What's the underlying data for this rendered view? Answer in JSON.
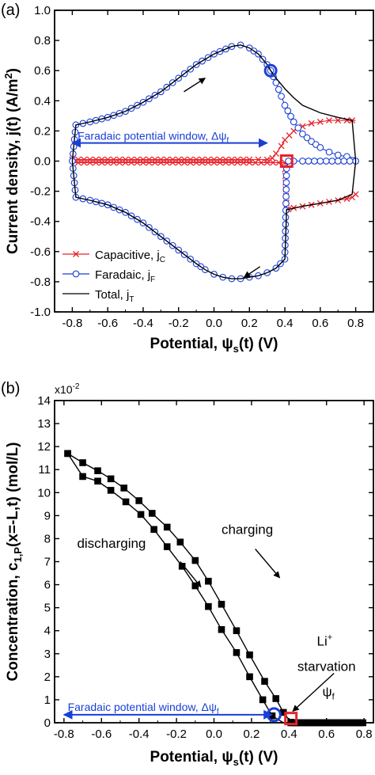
{
  "chart_data": [
    {
      "type": "line",
      "panel_label": "(a)",
      "xlabel_main": "Potential, ψ",
      "xlabel_sub": "s",
      "xlabel_tail": "(t) (V)",
      "ylabel_main": "Current density, j(t) (A/m",
      "ylabel_sup": "2",
      "ylabel_tail": ")",
      "xlim": [
        -0.9,
        0.9
      ],
      "ylim": [
        -1.0,
        1.0
      ],
      "x_ticks": [
        "-0.8",
        "-0.6",
        "-0.4",
        "-0.2",
        "0.0",
        "0.2",
        "0.4",
        "0.6",
        "0.8"
      ],
      "y_ticks": [
        "-1.0",
        "-0.8",
        "-0.6",
        "-0.4",
        "-0.2",
        "0.0",
        "0.2",
        "0.4",
        "0.6",
        "0.8",
        "1.0"
      ],
      "legend_position": "bottom-left",
      "series": [
        {
          "name": "Capacitive, j",
          "subscript": "C",
          "color": "#e8222a",
          "marker": "x",
          "branches": [
            {
              "x": [
                -0.8,
                -0.7,
                -0.6,
                -0.5,
                -0.4,
                -0.3,
                -0.2,
                -0.1,
                0.0,
                0.1,
                0.2,
                0.25,
                0.3,
                0.33,
                0.35,
                0.38,
                0.4,
                0.45,
                0.5,
                0.55,
                0.6,
                0.65,
                0.7,
                0.75,
                0.78,
                0.8
              ],
              "y": [
                0.01,
                0.01,
                0.01,
                0.01,
                0.01,
                0.01,
                0.01,
                0.01,
                0.01,
                0.01,
                0.01,
                0.01,
                0.01,
                0.02,
                0.05,
                0.1,
                0.14,
                0.2,
                0.23,
                0.25,
                0.26,
                0.27,
                0.27,
                0.27,
                0.27,
                0.27
              ]
            },
            {
              "x": [
                0.8,
                0.78,
                0.75,
                0.7,
                0.65,
                0.6,
                0.55,
                0.5,
                0.45,
                0.42,
                0.41,
                0.4,
                0.3,
                0.2,
                0.1,
                0.0,
                -0.1,
                -0.2,
                -0.3,
                -0.4,
                -0.5,
                -0.6,
                -0.7,
                -0.8
              ],
              "y": [
                -0.22,
                -0.24,
                -0.25,
                -0.26,
                -0.27,
                -0.28,
                -0.29,
                -0.3,
                -0.31,
                -0.32,
                -0.32,
                -0.01,
                -0.01,
                -0.01,
                -0.01,
                -0.01,
                -0.01,
                -0.01,
                -0.01,
                -0.01,
                -0.01,
                -0.01,
                -0.01,
                -0.01
              ]
            }
          ]
        },
        {
          "name": "Faradaic, j",
          "subscript": "F",
          "color": "#1a3fd6",
          "marker": "o",
          "branches": [
            {
              "x": [
                -0.8,
                -0.78,
                -0.7,
                -0.6,
                -0.5,
                -0.4,
                -0.3,
                -0.2,
                -0.1,
                0.0,
                0.1,
                0.15,
                0.2,
                0.25,
                0.3,
                0.32,
                0.35,
                0.38,
                0.4,
                0.45,
                0.5,
                0.55,
                0.6,
                0.65,
                0.7,
                0.75,
                0.8
              ],
              "y": [
                0.0,
                0.24,
                0.26,
                0.29,
                0.33,
                0.39,
                0.46,
                0.55,
                0.64,
                0.71,
                0.76,
                0.77,
                0.75,
                0.71,
                0.64,
                0.6,
                0.52,
                0.43,
                0.37,
                0.26,
                0.18,
                0.13,
                0.09,
                0.06,
                0.04,
                0.03,
                0.02
              ]
            },
            {
              "x": [
                0.8,
                0.7,
                0.6,
                0.5,
                0.45,
                0.42,
                0.41,
                0.4,
                0.35,
                0.3,
                0.25,
                0.2,
                0.15,
                0.1,
                0.05,
                0.0,
                -0.05,
                -0.1,
                -0.2,
                -0.3,
                -0.4,
                -0.5,
                -0.6,
                -0.7,
                -0.78,
                -0.8
              ],
              "y": [
                0.0,
                0.0,
                0.0,
                0.0,
                0.0,
                0.0,
                -0.05,
                -0.65,
                -0.71,
                -0.74,
                -0.76,
                -0.77,
                -0.78,
                -0.78,
                -0.77,
                -0.75,
                -0.72,
                -0.68,
                -0.59,
                -0.5,
                -0.41,
                -0.34,
                -0.29,
                -0.26,
                -0.24,
                0.0
              ]
            }
          ]
        },
        {
          "name": "Total, j",
          "subscript": "T",
          "color": "#000000",
          "marker": "none",
          "branches": [
            {
              "x": [
                -0.8,
                -0.78,
                -0.7,
                -0.6,
                -0.5,
                -0.4,
                -0.3,
                -0.2,
                -0.1,
                0.0,
                0.1,
                0.15,
                0.2,
                0.25,
                0.3,
                0.32,
                0.35,
                0.4,
                0.45,
                0.5,
                0.6,
                0.7,
                0.78,
                0.8
              ],
              "y": [
                0.0,
                0.24,
                0.26,
                0.29,
                0.33,
                0.39,
                0.46,
                0.55,
                0.64,
                0.71,
                0.76,
                0.77,
                0.75,
                0.71,
                0.64,
                0.6,
                0.55,
                0.48,
                0.42,
                0.37,
                0.32,
                0.29,
                0.27,
                0.0
              ]
            },
            {
              "x": [
                0.8,
                0.78,
                0.7,
                0.6,
                0.5,
                0.42,
                0.41,
                0.4,
                0.35,
                0.3,
                0.25,
                0.2,
                0.15,
                0.1,
                0.05,
                0.0,
                -0.05,
                -0.1,
                -0.2,
                -0.3,
                -0.4,
                -0.5,
                -0.6,
                -0.7,
                -0.78,
                -0.8
              ],
              "y": [
                0.0,
                -0.22,
                -0.26,
                -0.28,
                -0.3,
                -0.32,
                -0.32,
                -0.65,
                -0.71,
                -0.74,
                -0.76,
                -0.77,
                -0.78,
                -0.78,
                -0.77,
                -0.75,
                -0.72,
                -0.68,
                -0.59,
                -0.5,
                -0.41,
                -0.34,
                -0.29,
                -0.26,
                -0.24,
                0.0
              ]
            }
          ]
        }
      ],
      "annotations": {
        "window_text": "Faradaic potential window, Δψ",
        "window_sub": "f",
        "window_x": [
          -0.8,
          0.3
        ],
        "window_y": 0.12,
        "circle_marker": {
          "x": 0.32,
          "y": 0.6,
          "color": "#1a3fd6"
        },
        "square_marker": {
          "x": 0.41,
          "y": 0.0,
          "color": "#e8222a"
        },
        "arrows": [
          {
            "from": [
              -0.17,
              0.46
            ],
            "to": [
              -0.05,
              0.55
            ]
          },
          {
            "from": [
              0.26,
              -0.7
            ],
            "to": [
              0.17,
              -0.77
            ]
          }
        ]
      }
    },
    {
      "type": "line",
      "panel_label": "(b)",
      "xlabel_main": "Potential, ψ",
      "xlabel_sub": "s",
      "xlabel_tail": "(t) (V)",
      "ylabel_main": "Concentration, c",
      "ylabel_sub": "1,P",
      "ylabel_tail": "(x=-L,t) (mol/L)",
      "y_multiplier": "x10",
      "y_multiplier_exp": "-2",
      "xlim": [
        -0.85,
        0.85
      ],
      "ylim": [
        0,
        14
      ],
      "x_ticks": [
        "-0.8",
        "-0.6",
        "-0.4",
        "-0.2",
        "0.0",
        "0.2",
        "0.4",
        "0.6",
        "0.8"
      ],
      "y_ticks": [
        "0",
        "1",
        "2",
        "3",
        "4",
        "5",
        "6",
        "7",
        "8",
        "9",
        "10",
        "11",
        "12",
        "13",
        "14"
      ],
      "series": [
        {
          "name": "charging",
          "color": "#000000",
          "marker": "square",
          "x": [
            -0.78,
            -0.7,
            -0.62,
            -0.55,
            -0.48,
            -0.4,
            -0.33,
            -0.25,
            -0.18,
            -0.1,
            -0.03,
            0.04,
            0.12,
            0.19,
            0.27,
            0.33,
            0.37,
            0.41,
            0.45,
            0.55,
            0.65,
            0.75,
            0.8
          ],
          "y": [
            11.7,
            11.3,
            10.95,
            10.6,
            10.2,
            9.65,
            9.1,
            8.5,
            7.85,
            7.05,
            6.15,
            5.15,
            4.0,
            2.95,
            1.8,
            1.05,
            0.45,
            0.02,
            0.0,
            0.0,
            0.0,
            0.0,
            0.0
          ]
        },
        {
          "name": "discharging",
          "color": "#000000",
          "marker": "square",
          "x": [
            0.8,
            0.7,
            0.6,
            0.5,
            0.41,
            0.37,
            0.31,
            0.26,
            0.19,
            0.12,
            0.04,
            -0.03,
            -0.1,
            -0.17,
            -0.25,
            -0.32,
            -0.39,
            -0.47,
            -0.55,
            -0.62,
            -0.7,
            -0.78
          ],
          "y": [
            0.0,
            0.0,
            0.0,
            0.0,
            0.0,
            0.0,
            0.3,
            1.0,
            2.0,
            3.05,
            4.05,
            5.05,
            5.95,
            6.8,
            7.65,
            8.4,
            9.05,
            9.6,
            10.1,
            10.5,
            10.7,
            11.7
          ]
        }
      ],
      "annotations": {
        "charging_label": "charging",
        "discharging_label": "discharging",
        "li_label": "Li",
        "li_sup": "+",
        "starvation_label": "starvation",
        "psi_label": "ψ",
        "psi_sub": "f",
        "window_text": "Faradaic potential window, Δψ",
        "window_sub": "f",
        "window_x": [
          -0.8,
          0.31
        ],
        "window_y": 0.35,
        "circle_marker": {
          "x": 0.32,
          "y": 0.35,
          "color": "#1a3fd6"
        },
        "square_marker": {
          "x": 0.41,
          "y": 0.15,
          "color": "#e8222a"
        },
        "arrows": [
          {
            "from": [
              0.22,
              7.55
            ],
            "to": [
              0.35,
              6.3
            ]
          },
          {
            "from": [
              -0.18,
              7.0
            ],
            "to": [
              -0.07,
              5.9
            ]
          },
          {
            "from": [
              0.64,
              2.15
            ],
            "to": [
              0.42,
              0.5
            ]
          }
        ]
      }
    }
  ]
}
